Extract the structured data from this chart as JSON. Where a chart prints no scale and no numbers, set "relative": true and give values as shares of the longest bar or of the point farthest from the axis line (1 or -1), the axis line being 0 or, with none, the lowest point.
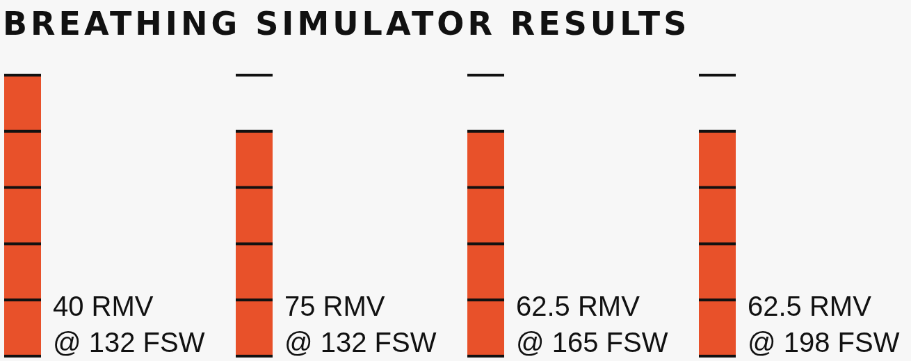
{
  "chart_data": {
    "type": "bar",
    "title": "BREATHING SIMULATOR RESULTS",
    "relative": true,
    "categories": [
      "40 RMV\n@ 132 FSW",
      "75 RMV\n@ 132 FSW",
      "62.5 RMV\n@ 165 FSW",
      "62.5 RMV\n@ 198 FSW"
    ],
    "values": [
      1,
      0.8,
      0.8,
      0.8
    ],
    "color": "#e8512a"
  }
}
